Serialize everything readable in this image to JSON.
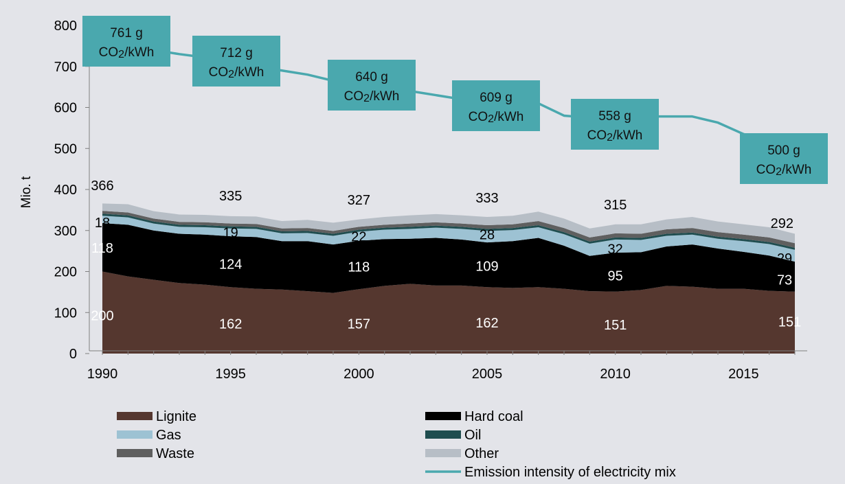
{
  "chart_data": {
    "type": "area",
    "ylabel": "Mio. t",
    "ylim": [
      0,
      800
    ],
    "yticks": [
      "0",
      "100",
      "200",
      "300",
      "400",
      "500",
      "600",
      "700",
      "800"
    ],
    "xticks": [
      "1990",
      "1995",
      "2000",
      "2005",
      "2010",
      "2015"
    ],
    "grid": false,
    "legend_position": "bottom",
    "x": [
      1990,
      1991,
      1992,
      1993,
      1994,
      1995,
      1996,
      1997,
      1998,
      1999,
      2000,
      2001,
      2002,
      2003,
      2004,
      2005,
      2006,
      2007,
      2008,
      2009,
      2010,
      2011,
      2012,
      2013,
      2014,
      2015,
      2016,
      2017
    ],
    "series": [
      {
        "name": "Lignite",
        "color": "#55372f",
        "values": [
          200,
          188,
          180,
          172,
          168,
          162,
          158,
          156,
          152,
          148,
          157,
          165,
          170,
          166,
          166,
          162,
          160,
          162,
          158,
          152,
          151,
          155,
          165,
          163,
          158,
          158,
          153,
          151
        ]
      },
      {
        "name": "Hard coal",
        "color": "#000000",
        "values": [
          118,
          126,
          120,
          120,
          122,
          124,
          126,
          118,
          122,
          118,
          118,
          114,
          110,
          116,
          112,
          109,
          114,
          120,
          105,
          86,
          95,
          92,
          96,
          103,
          98,
          90,
          86,
          73
        ]
      },
      {
        "name": "Gas",
        "color": "#9dc2d3",
        "values": [
          18,
          18,
          17,
          17,
          18,
          19,
          20,
          19,
          20,
          21,
          22,
          23,
          24,
          25,
          26,
          28,
          27,
          26,
          28,
          30,
          32,
          30,
          26,
          24,
          24,
          26,
          28,
          29
        ]
      },
      {
        "name": "Oil",
        "color": "#1f4d4f",
        "values": [
          5,
          5,
          5,
          5,
          5,
          5,
          5,
          5,
          5,
          5,
          5,
          5,
          5,
          5,
          5,
          5,
          5,
          5,
          5,
          5,
          5,
          5,
          5,
          5,
          5,
          5,
          5,
          5
        ]
      },
      {
        "name": "Waste",
        "color": "#5f5f5f",
        "values": [
          7,
          7,
          7,
          7,
          7,
          7,
          7,
          7,
          7,
          7,
          7,
          7,
          8,
          8,
          8,
          9,
          9,
          10,
          10,
          10,
          10,
          10,
          11,
          11,
          11,
          11,
          11,
          11
        ]
      },
      {
        "name": "Other",
        "color": "#b7bec6",
        "values": [
          18,
          20,
          18,
          18,
          18,
          18,
          18,
          18,
          20,
          20,
          18,
          19,
          20,
          20,
          20,
          20,
          21,
          23,
          23,
          22,
          22,
          23,
          24,
          27,
          26,
          25,
          25,
          23
        ]
      }
    ],
    "line": {
      "name": "Emission intensity of electricity mix",
      "color": "#4aa8ae",
      "x": [
        1990,
        1991,
        1992,
        1993,
        1994,
        1995,
        1996,
        1997,
        1998,
        1999,
        2000,
        2001,
        2002,
        2003,
        2004,
        2005,
        2006,
        2007,
        2008,
        2009,
        2010,
        2011,
        2012,
        2013,
        2014,
        2015,
        2016,
        2017
      ],
      "values": [
        761,
        750,
        740,
        730,
        722,
        712,
        700,
        690,
        680,
        665,
        640,
        640,
        640,
        630,
        620,
        609,
        600,
        610,
        580,
        575,
        558,
        578,
        578,
        578,
        563,
        535,
        515,
        500
      ]
    },
    "intensity_boxes": [
      {
        "year": 1990,
        "value": "761 g",
        "unit_pre": "CO",
        "unit_sub": "2",
        "unit_post": "/kWh"
      },
      {
        "year": 1995,
        "value": "712 g",
        "unit_pre": "CO",
        "unit_sub": "2",
        "unit_post": "/kWh"
      },
      {
        "year": 2000,
        "value": "640 g",
        "unit_pre": "CO",
        "unit_sub": "2",
        "unit_post": "/kWh"
      },
      {
        "year": 2005,
        "value": "609 g",
        "unit_pre": "CO",
        "unit_sub": "2",
        "unit_post": "/kWh"
      },
      {
        "year": 2010,
        "value": "558 g",
        "unit_pre": "CO",
        "unit_sub": "2",
        "unit_post": "/kWh"
      },
      {
        "year": 2017,
        "value": "500 g",
        "unit_pre": "CO",
        "unit_sub": "2",
        "unit_post": "/kWh"
      }
    ],
    "data_labels": [
      {
        "text": "366",
        "x": 1990,
        "y": 410,
        "color": "#000000"
      },
      {
        "text": "335",
        "x": 1995,
        "y": 385,
        "color": "#000000"
      },
      {
        "text": "327",
        "x": 2000,
        "y": 375,
        "color": "#000000"
      },
      {
        "text": "333",
        "x": 2005,
        "y": 380,
        "color": "#000000"
      },
      {
        "text": "315",
        "x": 2010,
        "y": 363,
        "color": "#000000"
      },
      {
        "text": "292",
        "x": 2016.5,
        "y": 318,
        "color": "#000000"
      },
      {
        "text": "18",
        "x": 1990,
        "y": 320,
        "color": "#000000"
      },
      {
        "text": "19",
        "x": 1995,
        "y": 295,
        "color": "#000000"
      },
      {
        "text": "22",
        "x": 2000,
        "y": 285,
        "color": "#000000"
      },
      {
        "text": "28",
        "x": 2005,
        "y": 290,
        "color": "#000000"
      },
      {
        "text": "32",
        "x": 2010,
        "y": 255,
        "color": "#000000"
      },
      {
        "text": "29",
        "x": 2016.6,
        "y": 233,
        "color": "#000000"
      },
      {
        "text": "118",
        "x": 1990,
        "y": 258,
        "color": "#ffffff"
      },
      {
        "text": "124",
        "x": 1995,
        "y": 218,
        "color": "#ffffff"
      },
      {
        "text": "118",
        "x": 2000,
        "y": 212,
        "color": "#ffffff"
      },
      {
        "text": "109",
        "x": 2005,
        "y": 213,
        "color": "#ffffff"
      },
      {
        "text": "95",
        "x": 2010,
        "y": 190,
        "color": "#ffffff"
      },
      {
        "text": "73",
        "x": 2016.6,
        "y": 180,
        "color": "#ffffff"
      },
      {
        "text": "200",
        "x": 1990,
        "y": 93,
        "color": "#ffffff"
      },
      {
        "text": "162",
        "x": 1995,
        "y": 73,
        "color": "#ffffff"
      },
      {
        "text": "157",
        "x": 2000,
        "y": 73,
        "color": "#ffffff"
      },
      {
        "text": "162",
        "x": 2005,
        "y": 75,
        "color": "#ffffff"
      },
      {
        "text": "151",
        "x": 2010,
        "y": 70,
        "color": "#ffffff"
      },
      {
        "text": "151",
        "x": 2016.8,
        "y": 78,
        "color": "#ffffff"
      }
    ],
    "legend": [
      {
        "label": "Lignite",
        "color": "#55372f",
        "kind": "patch"
      },
      {
        "label": "Hard coal",
        "color": "#000000",
        "kind": "patch"
      },
      {
        "label": "Gas",
        "color": "#9dc2d3",
        "kind": "patch"
      },
      {
        "label": "Oil",
        "color": "#1f4d4f",
        "kind": "patch"
      },
      {
        "label": "Waste",
        "color": "#5f5f5f",
        "kind": "patch"
      },
      {
        "label": "Other",
        "color": "#b7bec6",
        "kind": "patch"
      },
      {
        "label": "Emission intensity of electricity mix",
        "color": "#4aa8ae",
        "kind": "line"
      }
    ],
    "box_color": "#4aa8ae"
  }
}
